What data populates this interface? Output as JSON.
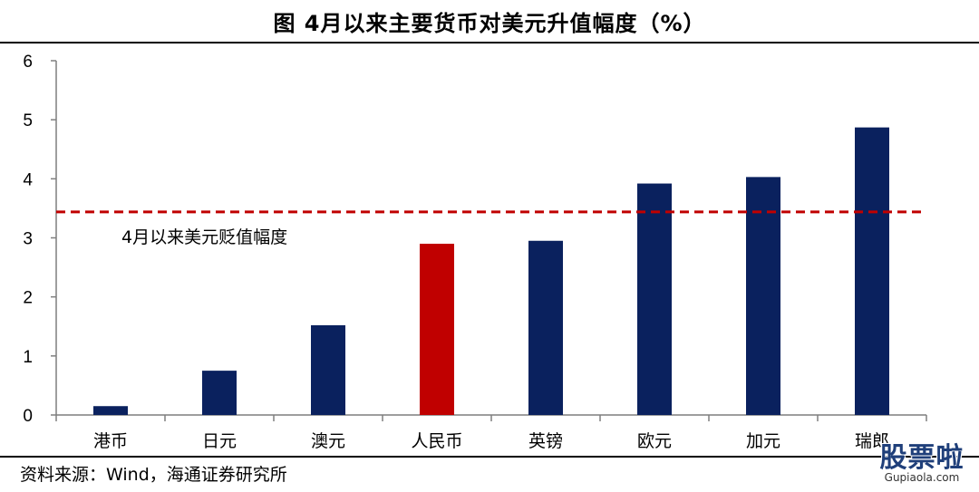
{
  "title": "图  4月以来主要货币对美元升值幅度（%）",
  "source": "资料来源：Wind，海通证券研究所",
  "watermark": {
    "text": "股票啦",
    "url": "Gupiaola.com"
  },
  "colors": {
    "bar": "#0a215e",
    "highlight_bar": "#c00000",
    "reference_line": "#c00000",
    "axis": "#7f7f7f"
  },
  "chart_data": {
    "type": "bar",
    "title": "4月以来主要货币对美元升值幅度（%）",
    "categories": [
      "港币",
      "日元",
      "澳元",
      "人民币",
      "英镑",
      "欧元",
      "加元",
      "瑞郎"
    ],
    "values": [
      0.15,
      0.75,
      1.52,
      2.9,
      2.95,
      3.92,
      4.03,
      4.87
    ],
    "highlight_index": 3,
    "ylim": [
      0,
      6
    ],
    "yticks": [
      0,
      1,
      2,
      3,
      4,
      5,
      6
    ],
    "grid": false,
    "legend": "none",
    "reference_line": {
      "value": 3.44,
      "label": "4月以来美元贬值幅度",
      "style": "dashed"
    }
  }
}
